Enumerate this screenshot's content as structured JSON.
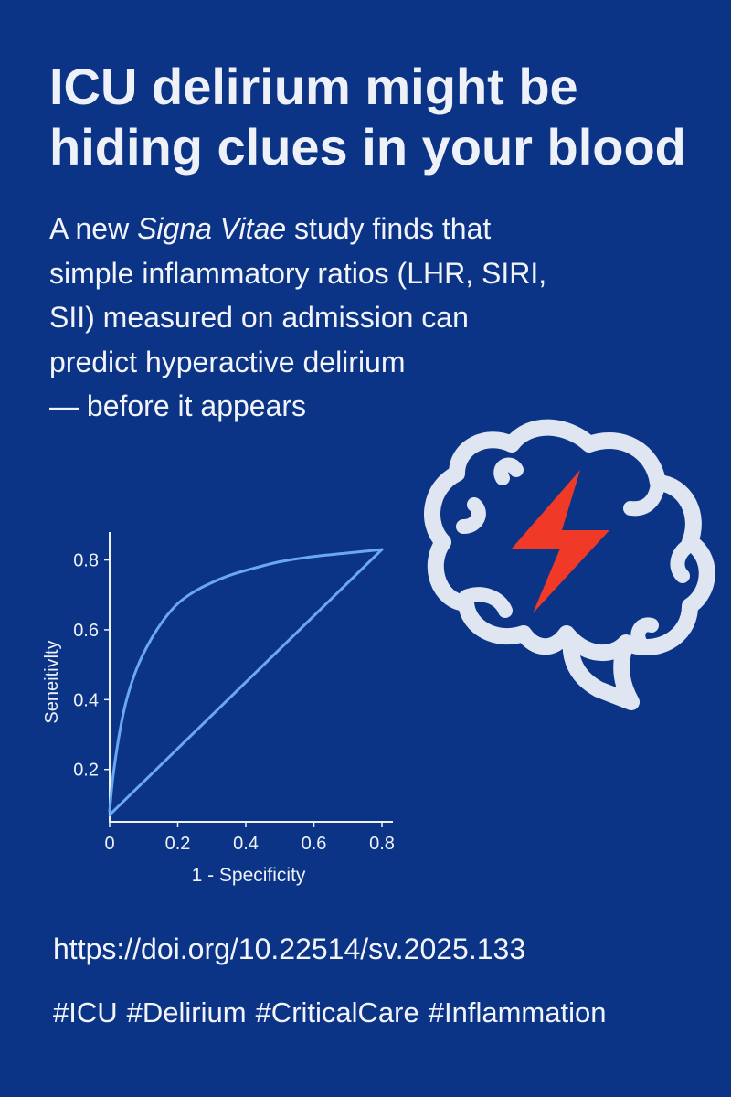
{
  "colors": {
    "background": "#0b3487",
    "text": "#eef1f7",
    "curve": "#6aa8ef",
    "bolt": "#f03a27",
    "brain_outline": "#dfe6f2"
  },
  "headline": {
    "line1": "ICU delirium might be",
    "line2": "hiding clues in your blood"
  },
  "subhead": {
    "line1_before": "A new ",
    "line1_italic": "Signa Vitae",
    "line1_after": " study finds that",
    "line2": "simple inflammatory ratios (LHR, SIRI,",
    "line3": "SII) measured on admission can",
    "line4": "predict hyperactive delirium",
    "line5": "— before it appears"
  },
  "icons": {
    "brain": "brain-icon",
    "bolt": "lightning-bolt-icon"
  },
  "chart_data": {
    "type": "line",
    "xlabel": "1 - Specificity",
    "ylabel": "Seneitivlty",
    "xlim": [
      0,
      0.8
    ],
    "ylim": [
      0.05,
      0.88
    ],
    "x_ticks": [
      "0",
      "0.2",
      "0.4",
      "0.6",
      "0.8"
    ],
    "y_ticks": [
      "0.2",
      "0.4",
      "0.6",
      "0.8"
    ],
    "grid": false,
    "series": [
      {
        "x": [
          0.0,
          0.01,
          0.03,
          0.05,
          0.08,
          0.12,
          0.16,
          0.2,
          0.25,
          0.3,
          0.35,
          0.4,
          0.5,
          0.6,
          0.7,
          0.8
        ],
        "y": [
          0.08,
          0.18,
          0.31,
          0.4,
          0.49,
          0.57,
          0.63,
          0.675,
          0.71,
          0.735,
          0.755,
          0.77,
          0.795,
          0.81,
          0.82,
          0.83
        ]
      },
      {
        "x": [
          0.0,
          0.8
        ],
        "y": [
          0.07,
          0.83
        ]
      }
    ]
  },
  "footer": {
    "doi": "https://doi.org/10.22514/sv.2025.133",
    "hashtags": [
      "#ICU",
      "#Delirium",
      "#CriticalCare",
      "#Inflammation"
    ]
  }
}
